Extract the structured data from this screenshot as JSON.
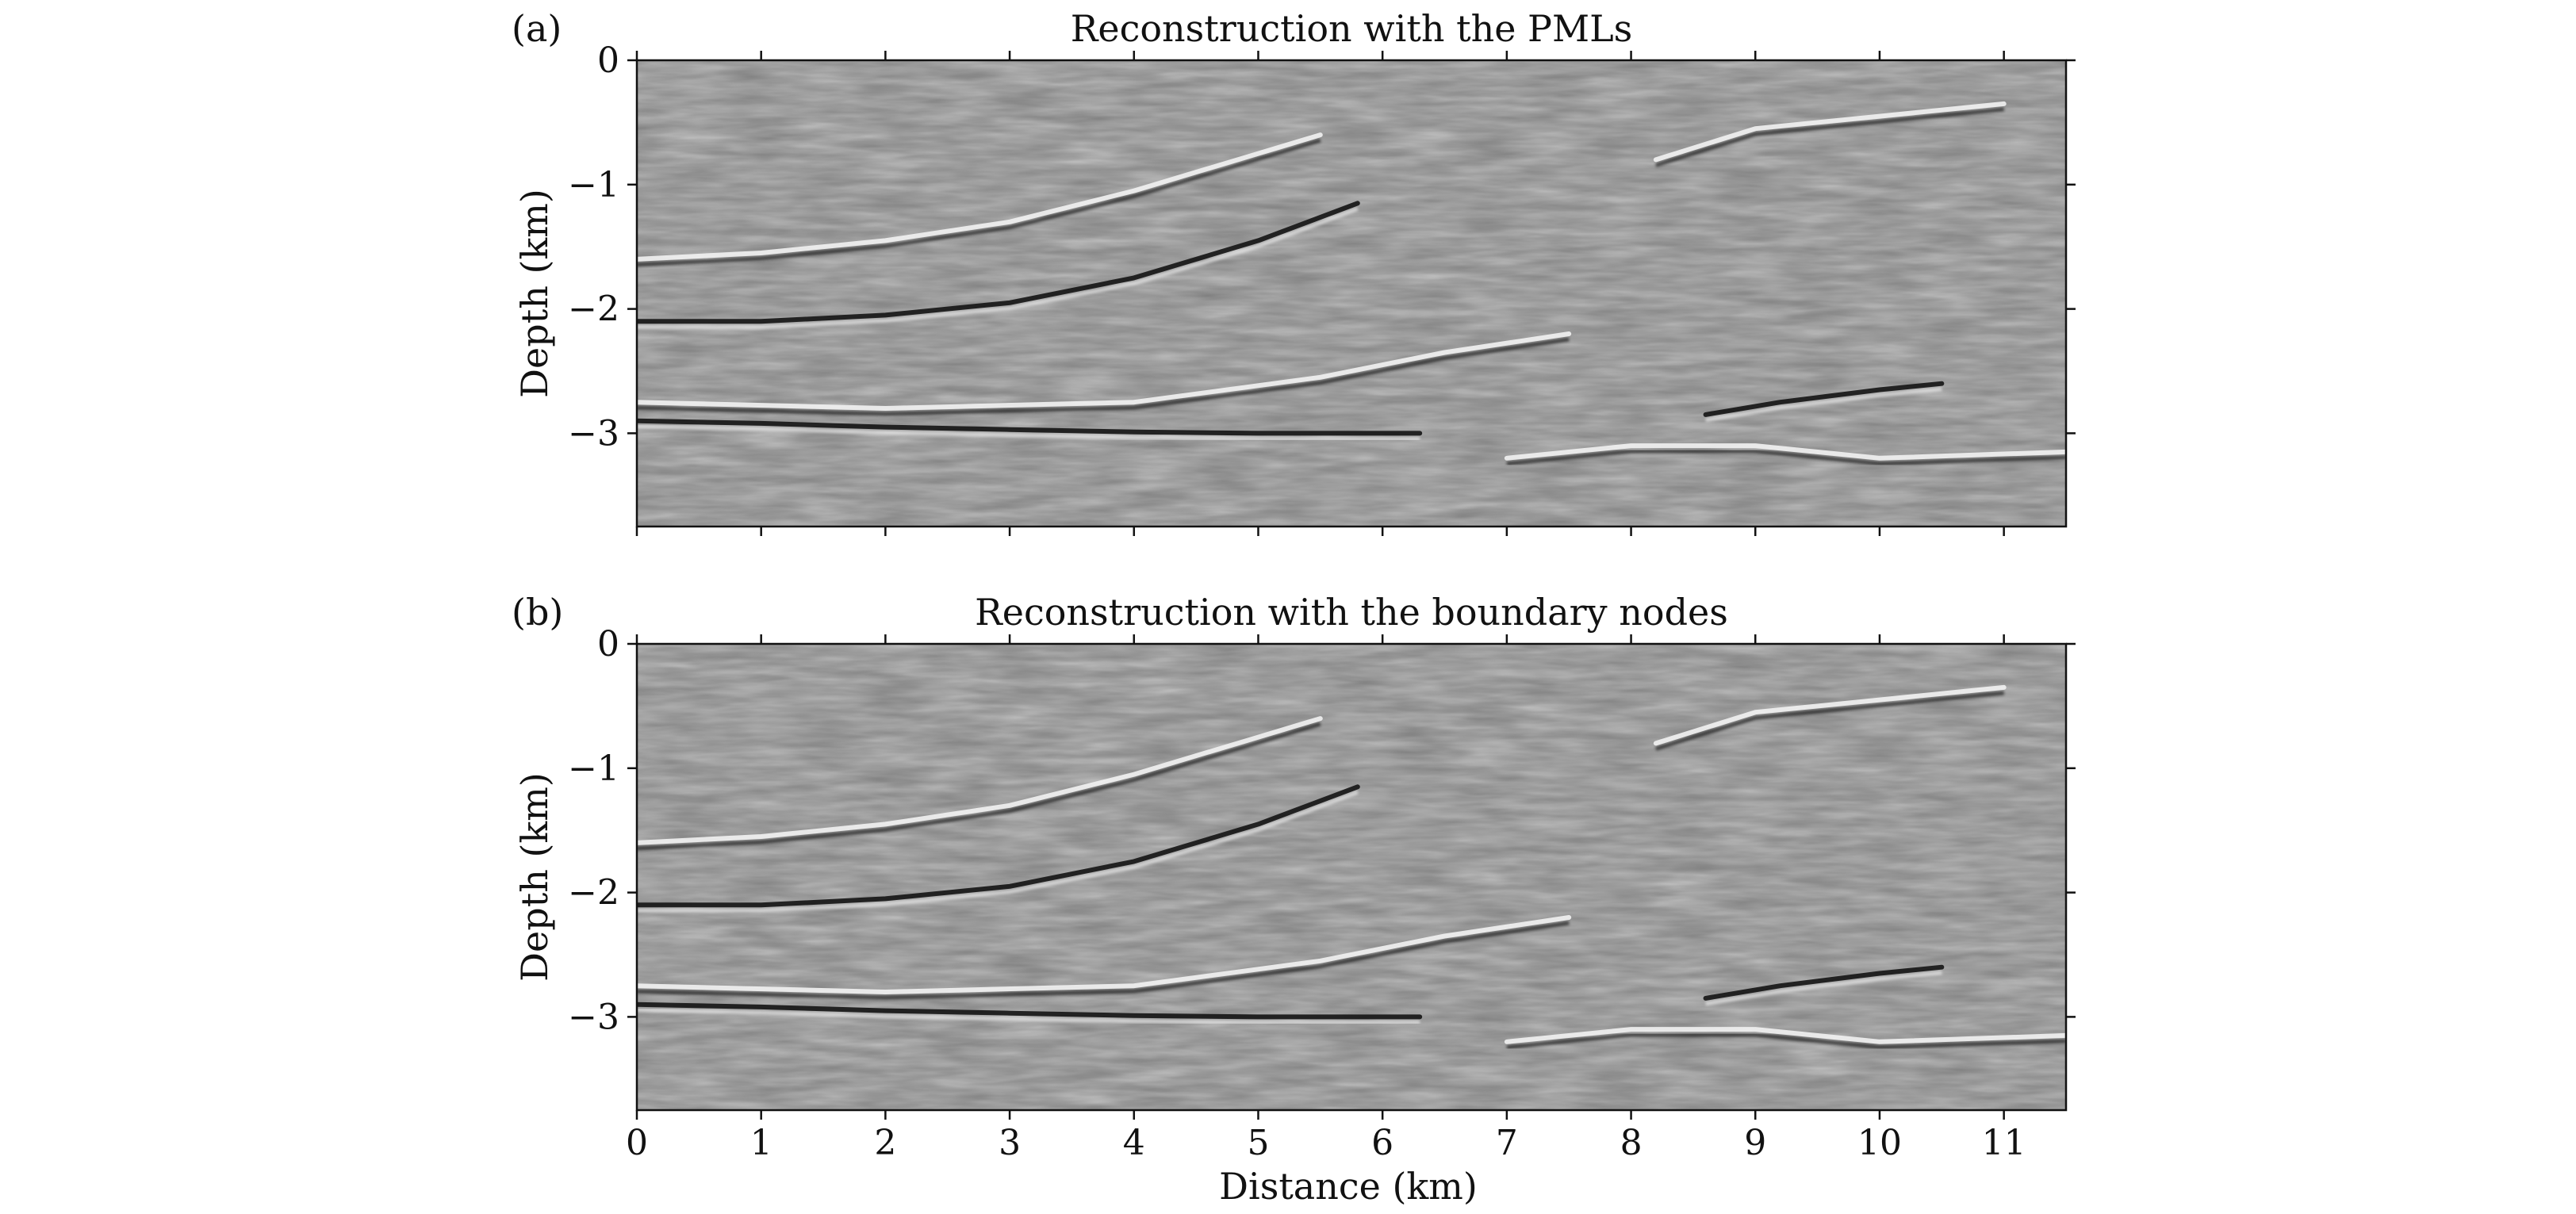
{
  "figure": {
    "panels": [
      {
        "label": "(a)",
        "title": "Reconstruction with the PMLs",
        "ylabel": "Depth (km)",
        "yticks": [
          "0",
          "−1",
          "−2",
          "−3"
        ]
      },
      {
        "label": "(b)",
        "title": "Reconstruction with the boundary nodes",
        "ylabel": "Depth (km)",
        "yticks": [
          "0",
          "−1",
          "−2",
          "−3"
        ],
        "xlabel": "Distance (km)",
        "xticks": [
          "0",
          "1",
          "2",
          "3",
          "4",
          "5",
          "6",
          "7",
          "8",
          "9",
          "10",
          "11"
        ]
      }
    ]
  },
  "chart_data": [
    {
      "type": "heatmap",
      "title": "Reconstruction with the PMLs",
      "panel_label": "(a)",
      "xlabel": "",
      "ylabel": "Depth (km)",
      "xlim": [
        0,
        11.5
      ],
      "ylim": [
        -3.75,
        0
      ],
      "xticks": [
        0,
        1,
        2,
        3,
        4,
        5,
        6,
        7,
        8,
        9,
        10,
        11
      ],
      "yticks": [
        0,
        -1,
        -2,
        -3
      ],
      "colormap": "gray",
      "reflectors": [
        {
          "name": "shallow-dome",
          "points": [
            [
              0,
              -1.6
            ],
            [
              1,
              -1.55
            ],
            [
              2,
              -1.45
            ],
            [
              3,
              -1.3
            ],
            [
              4,
              -1.05
            ],
            [
              5,
              -0.75
            ],
            [
              5.5,
              -0.6
            ]
          ],
          "polarity": "bright"
        },
        {
          "name": "mid-dome",
          "points": [
            [
              0,
              -2.1
            ],
            [
              1,
              -2.1
            ],
            [
              2,
              -2.05
            ],
            [
              3,
              -1.95
            ],
            [
              4,
              -1.75
            ],
            [
              5,
              -1.45
            ],
            [
              5.8,
              -1.15
            ]
          ],
          "polarity": "dark"
        },
        {
          "name": "deep-flat",
          "points": [
            [
              0,
              -2.9
            ],
            [
              1,
              -2.92
            ],
            [
              2,
              -2.95
            ],
            [
              3,
              -2.97
            ],
            [
              4,
              -2.99
            ],
            [
              5,
              -3.0
            ],
            [
              6.3,
              -3.0
            ]
          ],
          "polarity": "dark"
        },
        {
          "name": "lower-layer",
          "points": [
            [
              0,
              -2.75
            ],
            [
              2,
              -2.8
            ],
            [
              4,
              -2.75
            ],
            [
              5.5,
              -2.55
            ],
            [
              6.5,
              -2.35
            ],
            [
              7.5,
              -2.2
            ]
          ],
          "polarity": "bright"
        },
        {
          "name": "deep-dip",
          "points": [
            [
              8.6,
              -2.85
            ],
            [
              9.2,
              -2.75
            ],
            [
              10,
              -2.65
            ],
            [
              10.5,
              -2.6
            ]
          ],
          "polarity": "dark"
        },
        {
          "name": "basal",
          "points": [
            [
              7,
              -3.2
            ],
            [
              8,
              -3.1
            ],
            [
              9,
              -3.1
            ],
            [
              10,
              -3.2
            ],
            [
              11.5,
              -3.15
            ]
          ],
          "polarity": "bright"
        },
        {
          "name": "right-upper",
          "points": [
            [
              8.2,
              -0.8
            ],
            [
              9,
              -0.55
            ],
            [
              10,
              -0.45
            ],
            [
              11,
              -0.35
            ]
          ],
          "polarity": "bright"
        }
      ]
    },
    {
      "type": "heatmap",
      "title": "Reconstruction with the boundary nodes",
      "panel_label": "(b)",
      "xlabel": "Distance (km)",
      "ylabel": "Depth (km)",
      "xlim": [
        0,
        11.5
      ],
      "ylim": [
        -3.75,
        0
      ],
      "xticks": [
        0,
        1,
        2,
        3,
        4,
        5,
        6,
        7,
        8,
        9,
        10,
        11
      ],
      "yticks": [
        0,
        -1,
        -2,
        -3
      ],
      "colormap": "gray",
      "reflectors": [
        {
          "name": "shallow-dome",
          "points": [
            [
              0,
              -1.6
            ],
            [
              1,
              -1.55
            ],
            [
              2,
              -1.45
            ],
            [
              3,
              -1.3
            ],
            [
              4,
              -1.05
            ],
            [
              5,
              -0.75
            ],
            [
              5.5,
              -0.6
            ]
          ],
          "polarity": "bright"
        },
        {
          "name": "mid-dome",
          "points": [
            [
              0,
              -2.1
            ],
            [
              1,
              -2.1
            ],
            [
              2,
              -2.05
            ],
            [
              3,
              -1.95
            ],
            [
              4,
              -1.75
            ],
            [
              5,
              -1.45
            ],
            [
              5.8,
              -1.15
            ]
          ],
          "polarity": "dark"
        },
        {
          "name": "deep-flat",
          "points": [
            [
              0,
              -2.9
            ],
            [
              1,
              -2.92
            ],
            [
              2,
              -2.95
            ],
            [
              3,
              -2.97
            ],
            [
              4,
              -2.99
            ],
            [
              5,
              -3.0
            ],
            [
              6.3,
              -3.0
            ]
          ],
          "polarity": "dark"
        },
        {
          "name": "lower-layer",
          "points": [
            [
              0,
              -2.75
            ],
            [
              2,
              -2.8
            ],
            [
              4,
              -2.75
            ],
            [
              5.5,
              -2.55
            ],
            [
              6.5,
              -2.35
            ],
            [
              7.5,
              -2.2
            ]
          ],
          "polarity": "bright"
        },
        {
          "name": "deep-dip",
          "points": [
            [
              8.6,
              -2.85
            ],
            [
              9.2,
              -2.75
            ],
            [
              10,
              -2.65
            ],
            [
              10.5,
              -2.6
            ]
          ],
          "polarity": "dark"
        },
        {
          "name": "basal",
          "points": [
            [
              7,
              -3.2
            ],
            [
              8,
              -3.1
            ],
            [
              9,
              -3.1
            ],
            [
              10,
              -3.2
            ],
            [
              11.5,
              -3.15
            ]
          ],
          "polarity": "bright"
        },
        {
          "name": "right-upper",
          "points": [
            [
              8.2,
              -0.8
            ],
            [
              9,
              -0.55
            ],
            [
              10,
              -0.45
            ],
            [
              11,
              -0.35
            ]
          ],
          "polarity": "bright"
        }
      ]
    }
  ]
}
